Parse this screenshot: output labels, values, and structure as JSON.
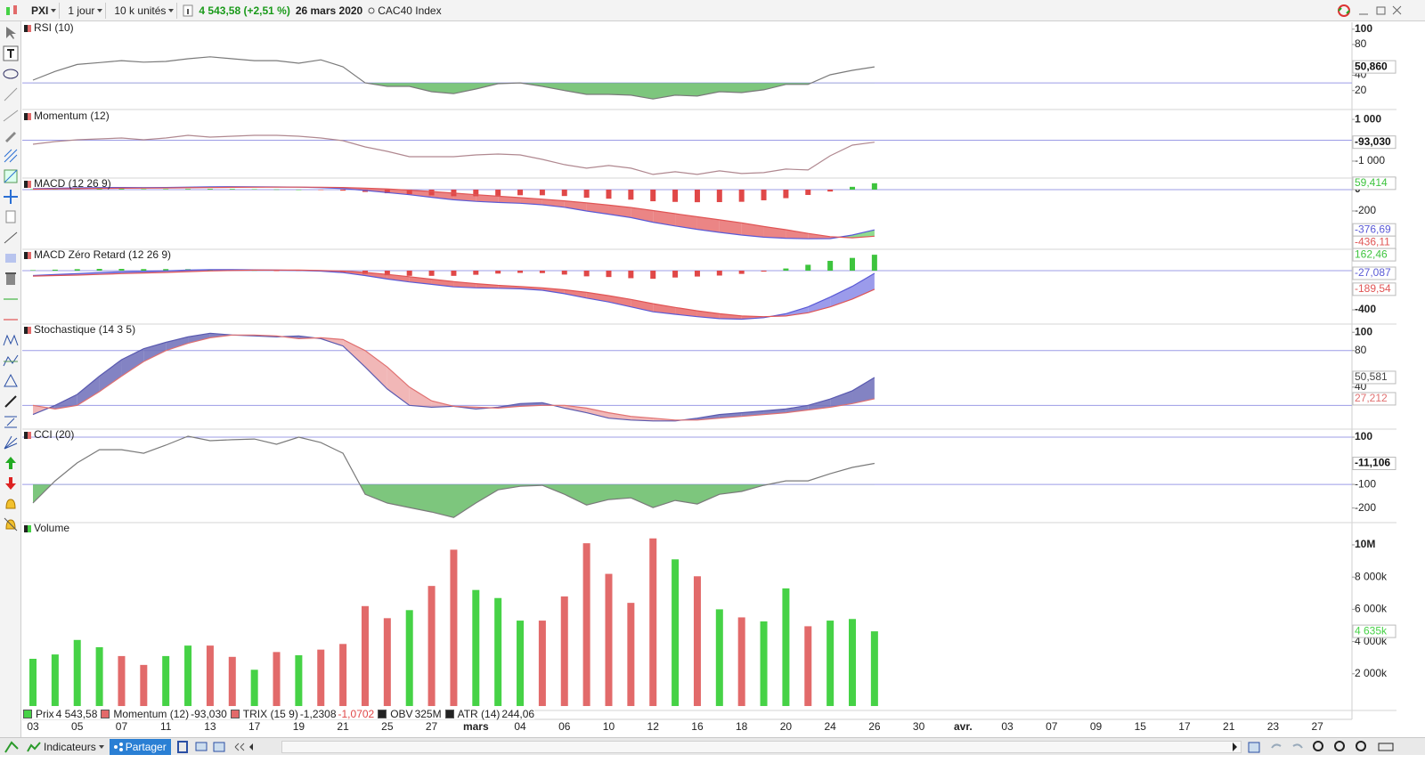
{
  "header": {
    "symbol": "PXI",
    "period": "1 jour",
    "units": "10 k unités",
    "price": "4 543,58 (+2,51 %)",
    "date": "26 mars 2020",
    "instrument": "CAC40 Index"
  },
  "chart_data": [
    {
      "type": "oscillator",
      "title": "RSI (10)",
      "ylim": [
        -3.5,
        109
      ],
      "yticks": [
        100,
        80,
        40,
        20
      ],
      "levels": [
        30
      ],
      "level_color": "#9c9ce6",
      "fill_color": "#5cb85c",
      "series": [
        {
          "color": "#7a7a7a",
          "values": [
            33.6,
            45,
            54,
            56.5,
            59,
            57,
            58,
            61.5,
            64,
            61.5,
            59,
            59,
            55.6,
            60,
            51,
            30,
            25.5,
            25.5,
            18.5,
            16,
            22,
            29,
            30,
            25.5,
            20,
            15,
            15,
            14,
            9,
            14,
            12.8,
            18.5,
            17.4,
            21,
            28,
            28,
            40.6,
            46.4,
            50.86
          ],
          "last_label": "50,860"
        }
      ]
    },
    {
      "type": "oscillator",
      "title": "Momentum (12)",
      "ylim": [
        -1770,
        1430
      ],
      "yticks": [
        {
          "value": 1000,
          "label": "1 000"
        },
        {
          "value": -1000,
          "label": "-1 000"
        }
      ],
      "levels": [
        0
      ],
      "level_color": "#9c9ce6",
      "series": [
        {
          "color": "#b08890",
          "values": [
            -190,
            -64,
            21,
            64,
            106,
            21,
            106,
            234,
            149,
            191,
            234,
            234,
            191,
            106,
            -21,
            -319,
            -532,
            -787,
            -787,
            -787,
            -702,
            -660,
            -702,
            -915,
            -1170,
            -1340,
            -1213,
            -1340,
            -1638,
            -1511,
            -1638,
            -1468,
            -1596,
            -1553,
            -1383,
            -1426,
            -745,
            -234,
            -93.03
          ],
          "last_label": "-93,030"
        }
      ]
    },
    {
      "type": "macd",
      "title": "MACD (12 26 9)",
      "ylim": [
        -550,
        108
      ],
      "yticks": [
        0,
        -200
      ],
      "levels": [
        0
      ],
      "level_color": "#9c9ce6",
      "fill_up_color": "#7ad67a",
      "fill_down_color": "#e87070",
      "macd": {
        "color": "#5a5ad6",
        "values": [
          8,
          12,
          16,
          19,
          20,
          19,
          20,
          23,
          26,
          27,
          26,
          25,
          23,
          18,
          10,
          -8,
          -28,
          -48,
          -72,
          -95,
          -110,
          -120,
          -128,
          -142,
          -165,
          -200,
          -230,
          -262,
          -305,
          -340,
          -372,
          -400,
          -425,
          -445,
          -455,
          -460,
          -458,
          -425,
          -376.69
        ],
        "last_label": "-376,69"
      },
      "signal": {
        "color": "#e05555",
        "values": [
          4,
          6,
          9,
          11,
          13,
          14,
          15,
          17,
          19,
          21,
          22,
          23,
          23,
          22,
          20,
          14,
          6,
          -5,
          -18,
          -33,
          -48,
          -62,
          -75,
          -89,
          -105,
          -124,
          -145,
          -168,
          -196,
          -225,
          -254,
          -283,
          -311,
          -345,
          -375,
          -410,
          -440,
          -451,
          -436.11
        ],
        "last_label": "-436,11"
      },
      "histogram": {
        "up_color": "#3ec43e",
        "down_color": "#e04848",
        "values": [
          4,
          6,
          7,
          8,
          7,
          5,
          5,
          6,
          7,
          6,
          4,
          2,
          0,
          -4,
          -10,
          -22,
          -34,
          -43,
          -54,
          -62,
          -62,
          -58,
          -53,
          -53,
          -60,
          -76,
          -85,
          -94,
          -109,
          -115,
          -118,
          -117,
          -114,
          -100,
          -80,
          -50,
          -18,
          26,
          59.414
        ],
        "last_label": "59,414"
      }
    },
    {
      "type": "macd",
      "title": "MACD Zéro Retard (12 26 9)",
      "ylim": [
        -536,
        218
      ],
      "yticks": [
        -400
      ],
      "levels": [
        0
      ],
      "level_color": "#9c9ce6",
      "fill_up_color": "#8a8ae8",
      "fill_down_color": "#e86a6a",
      "macd": {
        "color": "#5a5ad6",
        "values": [
          -50,
          -40,
          -30,
          -20,
          -12,
          -8,
          -2,
          5,
          10,
          10,
          8,
          5,
          2,
          -5,
          -20,
          -50,
          -85,
          -115,
          -140,
          -165,
          -175,
          -180,
          -185,
          -200,
          -235,
          -280,
          -320,
          -370,
          -420,
          -445,
          -470,
          -490,
          -495,
          -480,
          -440,
          -370,
          -270,
          -160,
          -27.087
        ],
        "last_label": "-27,087"
      },
      "signal": {
        "color": "#e05555",
        "values": [
          -55,
          -50,
          -45,
          -38,
          -30,
          -24,
          -18,
          -10,
          -3,
          2,
          5,
          6,
          5,
          2,
          -5,
          -18,
          -38,
          -62,
          -87,
          -112,
          -133,
          -150,
          -162,
          -175,
          -195,
          -222,
          -255,
          -293,
          -337,
          -375,
          -410,
          -440,
          -462,
          -470,
          -462,
          -430,
          -370,
          -290,
          -189.54
        ],
        "last_label": "-189,54"
      },
      "histogram": {
        "up_color": "#3ec43e",
        "down_color": "#e04848",
        "values": [
          5,
          10,
          15,
          18,
          18,
          16,
          16,
          15,
          13,
          8,
          3,
          -1,
          -3,
          -7,
          -15,
          -32,
          -47,
          -53,
          -53,
          -53,
          -42,
          -30,
          -23,
          -25,
          -40,
          -58,
          -65,
          -77,
          -83,
          -70,
          -60,
          -50,
          -33,
          -10,
          22,
          60,
          100,
          130,
          162.46
        ],
        "last_label": "162,46"
      }
    },
    {
      "type": "stochastic",
      "title": "Stochastique (14 3 5)",
      "ylim": [
        -5,
        109
      ],
      "yticks": [
        100,
        80,
        40
      ],
      "levels": [
        80,
        20
      ],
      "level_color": "#9c9ce6",
      "fill_up_color": "#6d6db8",
      "fill_down_color": "#eeaaaa",
      "k": {
        "color": "#5a5ab0",
        "values": [
          10,
          20,
          32,
          52,
          70,
          82,
          89,
          95,
          99,
          97,
          96,
          95,
          96,
          93,
          85,
          62,
          38,
          20,
          18,
          19,
          16,
          18,
          22,
          23,
          17,
          12,
          6,
          4,
          3,
          3,
          6,
          10,
          12,
          14,
          16,
          20,
          27,
          36,
          50.581
        ],
        "last_label": "50,581"
      },
      "d": {
        "color": "#e07070",
        "values": [
          20,
          16,
          20,
          35,
          52,
          68,
          80,
          88,
          94,
          97,
          97,
          96,
          93,
          94,
          92,
          80,
          62,
          40,
          25,
          19,
          18,
          17,
          19,
          20,
          20,
          17,
          12,
          8,
          6,
          4,
          4,
          6,
          8,
          10,
          12,
          15,
          18,
          22,
          27.212
        ],
        "last_label": "27,212"
      }
    },
    {
      "type": "oscillator",
      "title": "CCI (20)",
      "ylim": [
        -258,
        134
      ],
      "yticks": [
        100,
        -100,
        -200
      ],
      "levels": [
        100,
        -100
      ],
      "level_color": "#9c9ce6",
      "fill_color": "#5cb85c",
      "series": [
        {
          "color": "#7a7a7a",
          "values": [
            -179,
            -85,
            -9,
            47,
            47,
            32,
            66,
            104,
            85,
            89,
            92,
            70,
            100,
            77,
            32,
            -142,
            -179,
            -198,
            -217,
            -240,
            -179,
            -123,
            -108,
            -104,
            -142,
            -187,
            -164,
            -157,
            -198,
            -168,
            -183,
            -142,
            -130,
            -104,
            -85,
            -85,
            -55,
            -28,
            -11.106
          ],
          "last_label": "-11,106"
        }
      ]
    },
    {
      "type": "bar",
      "title": "Volume",
      "ylim": [
        -220000,
        11380000
      ],
      "yticks": [
        {
          "value": 10000000,
          "label": "10M"
        },
        {
          "value": 8000000,
          "label": "8 000k"
        },
        {
          "value": 6000000,
          "label": "6 000k"
        },
        {
          "value": 4000000,
          "label": "4 000k"
        },
        {
          "value": 2000000,
          "label": "2 000k"
        }
      ],
      "series": [
        {
          "values": [
            2930000,
            3200000,
            4100000,
            3650000,
            3100000,
            2550000,
            3100000,
            3750000,
            3750000,
            3050000,
            2250000,
            3350000,
            3150000,
            3500000,
            3850000,
            6200000,
            5450000,
            5950000,
            7450000,
            9700000,
            7200000,
            6700000,
            5300000,
            5300000,
            6800000,
            10100000,
            8200000,
            6400000,
            10400000,
            9100000,
            8050000,
            6000000,
            5500000,
            5250000,
            7300000,
            4950000,
            5300000,
            5400000,
            4635000
          ],
          "colors": [
            "#46d246",
            "#46d246",
            "#46d246",
            "#46d246",
            "#e26a6a",
            "#e26a6a",
            "#46d246",
            "#46d246",
            "#e26a6a",
            "#e26a6a",
            "#46d246",
            "#e26a6a",
            "#46d246",
            "#e26a6a",
            "#e26a6a",
            "#e26a6a",
            "#e26a6a",
            "#46d246",
            "#e26a6a",
            "#e26a6a",
            "#46d246",
            "#46d246",
            "#46d246",
            "#e26a6a",
            "#e26a6a",
            "#e26a6a",
            "#e26a6a",
            "#e26a6a",
            "#e26a6a",
            "#46d246",
            "#e26a6a",
            "#46d246",
            "#e26a6a",
            "#46d246",
            "#46d246",
            "#e26a6a",
            "#46d246",
            "#46d246",
            "#46d246"
          ],
          "last_label": "4 635k"
        }
      ]
    }
  ],
  "date_axis": {
    "labels": [
      "03",
      "05",
      "07",
      "11",
      "13",
      "17",
      "19",
      "21",
      "25",
      "27",
      "mars",
      "04",
      "06",
      "10",
      "12",
      "16",
      "18",
      "20",
      "24",
      "26",
      "30",
      "avr.",
      "03",
      "07",
      "09",
      "15",
      "17",
      "21",
      "23",
      "27"
    ]
  },
  "footer_legend": [
    {
      "name": "Prix",
      "values": [
        "4 543,58"
      ]
    },
    {
      "name": "Momentum (12)",
      "values": [
        "-93,030"
      ]
    },
    {
      "name": "TRIX (15 9)",
      "values": [
        "-1,2308",
        "-1,0702"
      ]
    },
    {
      "name": "OBV",
      "values": [
        "325M"
      ]
    },
    {
      "name": "ATR (14)",
      "values": [
        "244,06"
      ]
    }
  ],
  "toolbar": {
    "indicators": "Indicateurs",
    "share": "Partager"
  }
}
